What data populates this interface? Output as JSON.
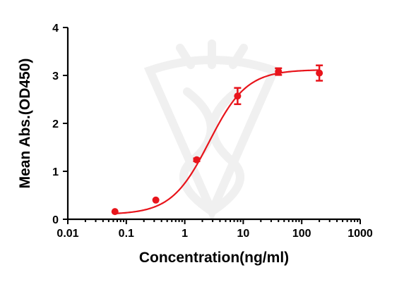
{
  "chart_data": {
    "type": "scatter",
    "title": "",
    "xlabel": "Concentration(ng/ml)",
    "ylabel": "Mean Abs.(OD450)",
    "xscale": "log",
    "xlim": [
      0.01,
      1000
    ],
    "ylim": [
      0,
      4
    ],
    "x_ticks": [
      "0.01",
      "0.1",
      "1",
      "10",
      "100",
      "1000"
    ],
    "y_ticks": [
      "0",
      "1",
      "2",
      "3",
      "4"
    ],
    "grid": false,
    "legend": "none",
    "color": "#e8141b",
    "series": [
      {
        "x": [
          0.064,
          0.32,
          1.6,
          8,
          40,
          200
        ],
        "y": [
          0.16,
          0.4,
          1.24,
          2.57,
          3.08,
          3.05
        ],
        "error": [
          0.0,
          0.0,
          0.03,
          0.17,
          0.07,
          0.16
        ]
      }
    ],
    "fit_curve": {
      "model": "4PL",
      "bottom": 0.1,
      "top": 3.12,
      "ec50": 2.6,
      "hill": 1.35
    }
  }
}
